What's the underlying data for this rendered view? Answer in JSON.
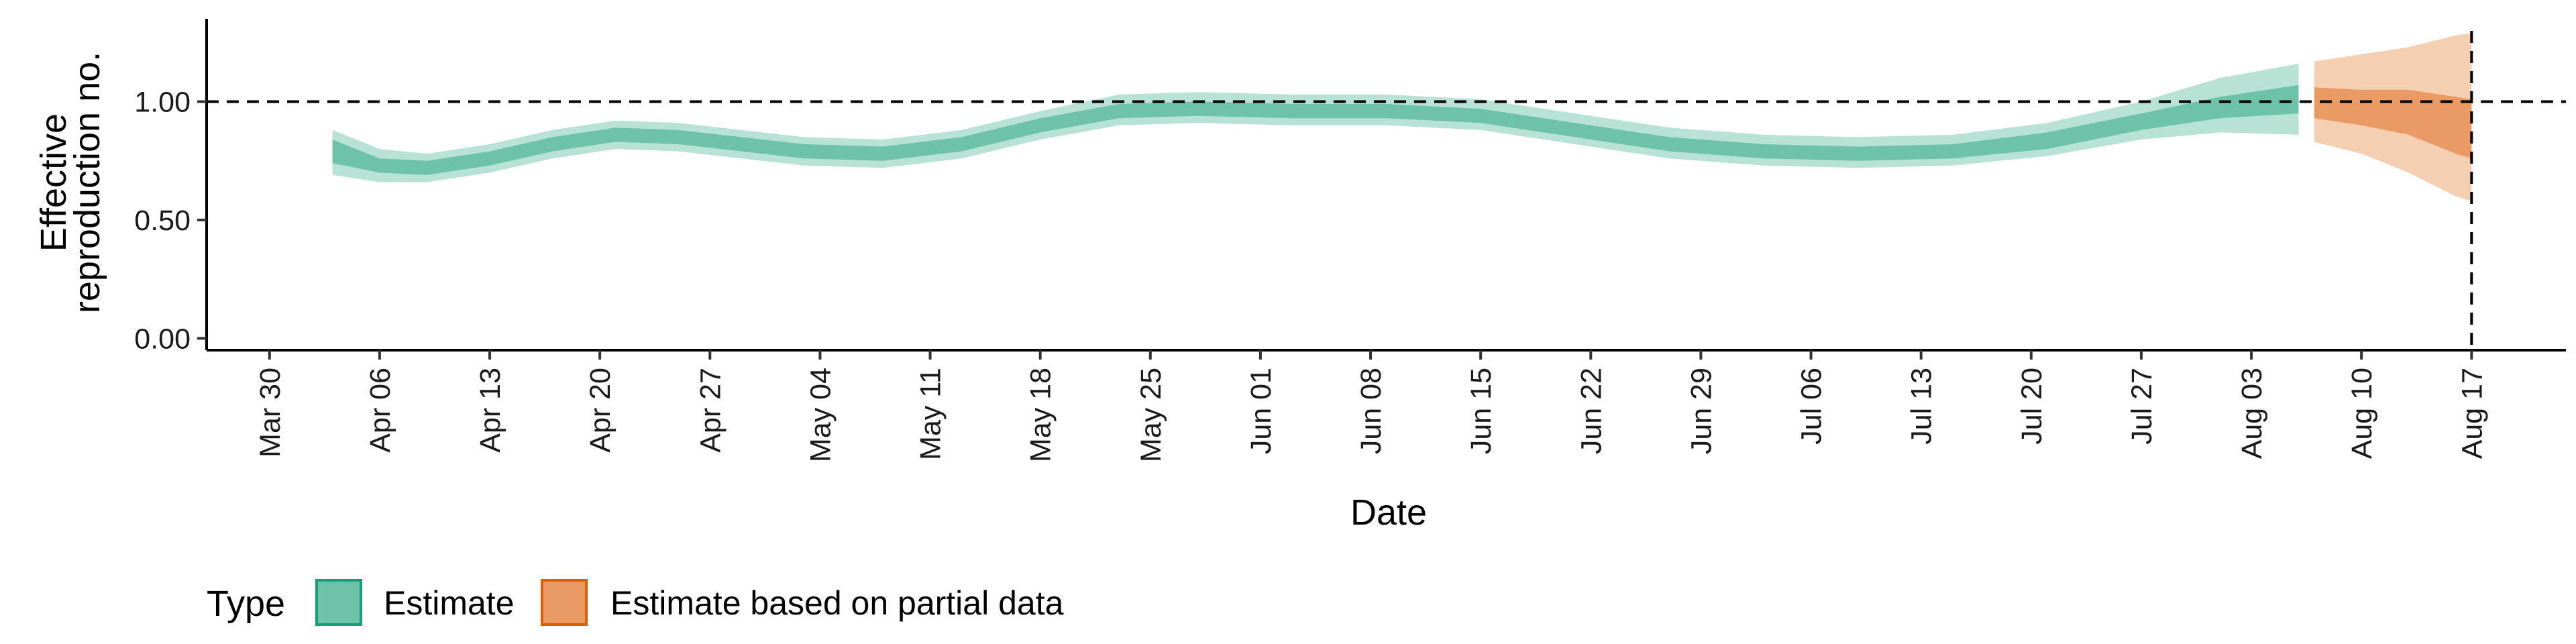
{
  "chart_data": {
    "type": "area",
    "xlabel": "Date",
    "ylabel_lines": [
      "Effective",
      "reproduction no."
    ],
    "x_ticks": [
      "Mar 30",
      "Apr 06",
      "Apr 13",
      "Apr 20",
      "Apr 27",
      "May 04",
      "May 11",
      "May 18",
      "May 25",
      "Jun 01",
      "Jun 08",
      "Jun 15",
      "Jun 22",
      "Jun 29",
      "Jul 06",
      "Jul 13",
      "Jul 20",
      "Jul 27",
      "Aug 03",
      "Aug 10",
      "Aug 17"
    ],
    "x_range": [
      "2020-03-26",
      "2020-08-23"
    ],
    "y_ticks": [
      "0.00",
      "0.50",
      "1.00"
    ],
    "y_tick_values": [
      0,
      0.5,
      1.0
    ],
    "ylim": [
      -0.05,
      1.35
    ],
    "reference_hline": 1.0,
    "reference_vline": "2020-08-17",
    "legend": {
      "title": "Type",
      "position": "bottom-left",
      "items": [
        {
          "label": "Estimate",
          "fill": "#6dc3a8",
          "border": "#1b9e77"
        },
        {
          "label": "Estimate based on partial data",
          "fill": "#e99b63",
          "border": "#d95f02"
        }
      ]
    },
    "series": [
      {
        "name": "Estimate",
        "inner_color": "#6dc3a8",
        "outer_color": "#b7e2d4",
        "points": [
          {
            "x": "2020-04-03",
            "lo90": 0.69,
            "lo50": 0.74,
            "median": 0.79,
            "hi50": 0.84,
            "hi90": 0.88
          },
          {
            "x": "2020-04-06",
            "lo90": 0.66,
            "lo50": 0.7,
            "median": 0.73,
            "hi50": 0.76,
            "hi90": 0.8
          },
          {
            "x": "2020-04-09",
            "lo90": 0.66,
            "lo50": 0.69,
            "median": 0.72,
            "hi50": 0.75,
            "hi90": 0.78
          },
          {
            "x": "2020-04-13",
            "lo90": 0.7,
            "lo50": 0.73,
            "median": 0.76,
            "hi50": 0.79,
            "hi90": 0.82
          },
          {
            "x": "2020-04-17",
            "lo90": 0.76,
            "lo50": 0.79,
            "median": 0.82,
            "hi50": 0.85,
            "hi90": 0.88
          },
          {
            "x": "2020-04-21",
            "lo90": 0.8,
            "lo50": 0.83,
            "median": 0.86,
            "hi50": 0.89,
            "hi90": 0.92
          },
          {
            "x": "2020-04-25",
            "lo90": 0.79,
            "lo50": 0.82,
            "median": 0.85,
            "hi50": 0.88,
            "hi90": 0.91
          },
          {
            "x": "2020-04-29",
            "lo90": 0.76,
            "lo50": 0.79,
            "median": 0.82,
            "hi50": 0.85,
            "hi90": 0.88
          },
          {
            "x": "2020-05-03",
            "lo90": 0.73,
            "lo50": 0.76,
            "median": 0.79,
            "hi50": 0.82,
            "hi90": 0.85
          },
          {
            "x": "2020-05-08",
            "lo90": 0.72,
            "lo50": 0.75,
            "median": 0.78,
            "hi50": 0.81,
            "hi90": 0.84
          },
          {
            "x": "2020-05-13",
            "lo90": 0.76,
            "lo50": 0.79,
            "median": 0.82,
            "hi50": 0.85,
            "hi90": 0.88
          },
          {
            "x": "2020-05-18",
            "lo90": 0.84,
            "lo50": 0.87,
            "median": 0.9,
            "hi50": 0.93,
            "hi90": 0.96
          },
          {
            "x": "2020-05-23",
            "lo90": 0.9,
            "lo50": 0.93,
            "median": 0.96,
            "hi50": 0.99,
            "hi90": 1.03
          },
          {
            "x": "2020-05-28",
            "lo90": 0.91,
            "lo50": 0.94,
            "median": 0.97,
            "hi50": 1.0,
            "hi90": 1.04
          },
          {
            "x": "2020-06-03",
            "lo90": 0.9,
            "lo50": 0.93,
            "median": 0.96,
            "hi50": 0.99,
            "hi90": 1.03
          },
          {
            "x": "2020-06-09",
            "lo90": 0.9,
            "lo50": 0.93,
            "median": 0.96,
            "hi50": 0.99,
            "hi90": 1.03
          },
          {
            "x": "2020-06-15",
            "lo90": 0.88,
            "lo50": 0.91,
            "median": 0.94,
            "hi50": 0.97,
            "hi90": 1.01
          },
          {
            "x": "2020-06-21",
            "lo90": 0.82,
            "lo50": 0.85,
            "median": 0.88,
            "hi50": 0.91,
            "hi90": 0.95
          },
          {
            "x": "2020-06-27",
            "lo90": 0.76,
            "lo50": 0.79,
            "median": 0.82,
            "hi50": 0.85,
            "hi90": 0.89
          },
          {
            "x": "2020-07-03",
            "lo90": 0.73,
            "lo50": 0.76,
            "median": 0.79,
            "hi50": 0.82,
            "hi90": 0.86
          },
          {
            "x": "2020-07-09",
            "lo90": 0.72,
            "lo50": 0.75,
            "median": 0.78,
            "hi50": 0.81,
            "hi90": 0.85
          },
          {
            "x": "2020-07-15",
            "lo90": 0.73,
            "lo50": 0.76,
            "median": 0.79,
            "hi50": 0.82,
            "hi90": 0.86
          },
          {
            "x": "2020-07-21",
            "lo90": 0.77,
            "lo50": 0.8,
            "median": 0.83,
            "hi50": 0.87,
            "hi90": 0.91
          },
          {
            "x": "2020-07-27",
            "lo90": 0.84,
            "lo50": 0.88,
            "median": 0.91,
            "hi50": 0.95,
            "hi90": 1.0
          },
          {
            "x": "2020-08-01",
            "lo90": 0.87,
            "lo50": 0.93,
            "median": 0.98,
            "hi50": 1.02,
            "hi90": 1.1
          },
          {
            "x": "2020-08-06",
            "lo90": 0.86,
            "lo50": 0.95,
            "median": 1.02,
            "hi50": 1.07,
            "hi90": 1.16
          }
        ]
      },
      {
        "name": "Estimate based on partial data",
        "inner_color": "#e99b63",
        "outer_color": "#f5cfb2",
        "points": [
          {
            "x": "2020-08-07",
            "lo90": 0.83,
            "lo50": 0.93,
            "median": 1.0,
            "hi50": 1.06,
            "hi90": 1.17
          },
          {
            "x": "2020-08-10",
            "lo90": 0.78,
            "lo50": 0.9,
            "median": 0.98,
            "hi50": 1.05,
            "hi90": 1.2
          },
          {
            "x": "2020-08-13",
            "lo90": 0.7,
            "lo50": 0.86,
            "median": 0.96,
            "hi50": 1.05,
            "hi90": 1.23
          },
          {
            "x": "2020-08-16",
            "lo90": 0.6,
            "lo50": 0.78,
            "median": 0.91,
            "hi50": 1.02,
            "hi90": 1.28
          },
          {
            "x": "2020-08-17",
            "lo90": 0.58,
            "lo50": 0.76,
            "median": 0.9,
            "hi50": 1.01,
            "hi90": 1.29
          }
        ]
      }
    ]
  }
}
